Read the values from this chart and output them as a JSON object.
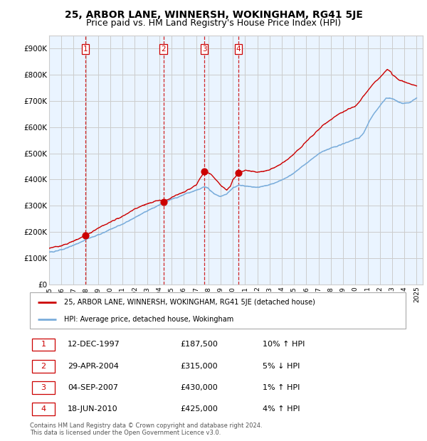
{
  "title": "25, ARBOR LANE, WINNERSH, WOKINGHAM, RG41 5JE",
  "subtitle": "Price paid vs. HM Land Registry's House Price Index (HPI)",
  "legend_label_red": "25, ARBOR LANE, WINNERSH, WOKINGHAM, RG41 5JE (detached house)",
  "legend_label_blue": "HPI: Average price, detached house, Wokingham",
  "footer": "Contains HM Land Registry data © Crown copyright and database right 2024.\nThis data is licensed under the Open Government Licence v3.0.",
  "sales": [
    {
      "num": 1,
      "date": "12-DEC-1997",
      "year": 1997.95,
      "price": 187500,
      "hpi_pct": "10% ↑ HPI"
    },
    {
      "num": 2,
      "date": "29-APR-2004",
      "year": 2004.33,
      "price": 315000,
      "hpi_pct": "5% ↓ HPI"
    },
    {
      "num": 3,
      "date": "04-SEP-2007",
      "year": 2007.67,
      "price": 430000,
      "hpi_pct": "1% ↑ HPI"
    },
    {
      "num": 4,
      "date": "18-JUN-2010",
      "year": 2010.46,
      "price": 425000,
      "hpi_pct": "4% ↑ HPI"
    }
  ],
  "ylim": [
    0,
    950000
  ],
  "xlim_start": 1995.0,
  "xlim_end": 2025.5,
  "yticks": [
    0,
    100000,
    200000,
    300000,
    400000,
    500000,
    600000,
    700000,
    800000,
    900000
  ],
  "ytick_labels": [
    "£0",
    "£100K",
    "£200K",
    "£300K",
    "£400K",
    "£500K",
    "£600K",
    "£700K",
    "£800K",
    "£900K"
  ],
  "xticks": [
    1995,
    1996,
    1997,
    1998,
    1999,
    2000,
    2001,
    2002,
    2003,
    2004,
    2005,
    2006,
    2007,
    2008,
    2009,
    2010,
    2011,
    2012,
    2013,
    2014,
    2015,
    2016,
    2017,
    2018,
    2019,
    2020,
    2021,
    2022,
    2023,
    2024,
    2025
  ],
  "red_color": "#cc0000",
  "blue_color": "#7aaddb",
  "bg_shade_color": "#ddeeff",
  "grid_color": "#cccccc",
  "title_fontsize": 10,
  "subtitle_fontsize": 9
}
